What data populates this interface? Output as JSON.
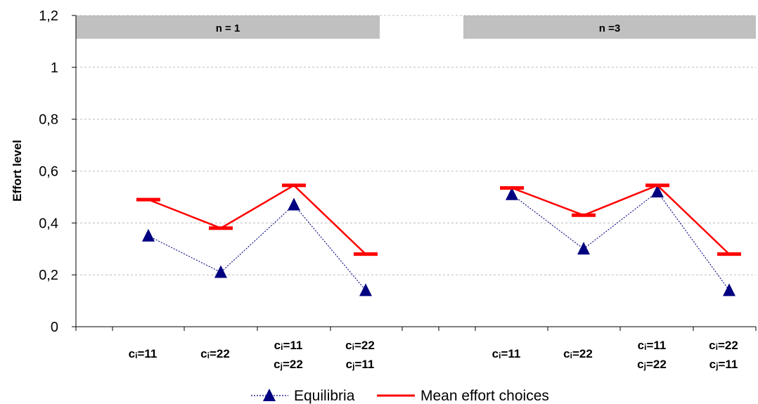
{
  "chart_data": {
    "type": "line",
    "ylabel": "Effort level",
    "ylim": [
      0,
      1.2
    ],
    "yticks": [
      "0",
      "0,2",
      "0,4",
      "0,6",
      "0,8",
      "1",
      "1,2"
    ],
    "yticks_values": [
      0,
      0.2,
      0.4,
      0.6,
      0.8,
      1.0,
      1.2
    ],
    "grid": "horizontal dashed",
    "legend_position": "bottom",
    "panels": [
      {
        "label": "n = 1",
        "categories": [
          {
            "line1": {
              "prefix": "c",
              "sub": "i",
              "suffix": "=11"
            },
            "line2": null
          },
          {
            "line1": {
              "prefix": "c",
              "sub": "i",
              "suffix": "=22"
            },
            "line2": null
          },
          {
            "line1": {
              "prefix": "c",
              "sub": "i",
              "suffix": "=11"
            },
            "line2": {
              "prefix": "c",
              "sub": "j",
              "suffix": "=22"
            }
          },
          {
            "line1": {
              "prefix": "c",
              "sub": "i",
              "suffix": "=22"
            },
            "line2": {
              "prefix": "c",
              "sub": "j",
              "suffix": "=11"
            }
          }
        ],
        "equilibria": [
          0.35,
          0.21,
          0.47,
          0.14
        ],
        "mean_effort": [
          0.49,
          0.38,
          0.545,
          0.28
        ]
      },
      {
        "label": "n =3",
        "categories": [
          {
            "line1": {
              "prefix": "c",
              "sub": "i",
              "suffix": "=11"
            },
            "line2": null
          },
          {
            "line1": {
              "prefix": "c",
              "sub": "i",
              "suffix": "=22"
            },
            "line2": null
          },
          {
            "line1": {
              "prefix": "c",
              "sub": "i",
              "suffix": "=11"
            },
            "line2": {
              "prefix": "c",
              "sub": "j",
              "suffix": "=22"
            }
          },
          {
            "line1": {
              "prefix": "c",
              "sub": "i",
              "suffix": "=22"
            },
            "line2": {
              "prefix": "c",
              "sub": "j",
              "suffix": "=11"
            }
          }
        ],
        "equilibria": [
          0.51,
          0.3,
          0.52,
          0.14
        ],
        "mean_effort": [
          0.535,
          0.43,
          0.545,
          0.28
        ]
      }
    ],
    "series": [
      {
        "name": "Equilibria",
        "color": "#000080",
        "style": "dotted line with triangle markers"
      },
      {
        "name": "Mean effort choices",
        "color": "#ff0000",
        "style": "solid line with dash markers"
      }
    ]
  }
}
